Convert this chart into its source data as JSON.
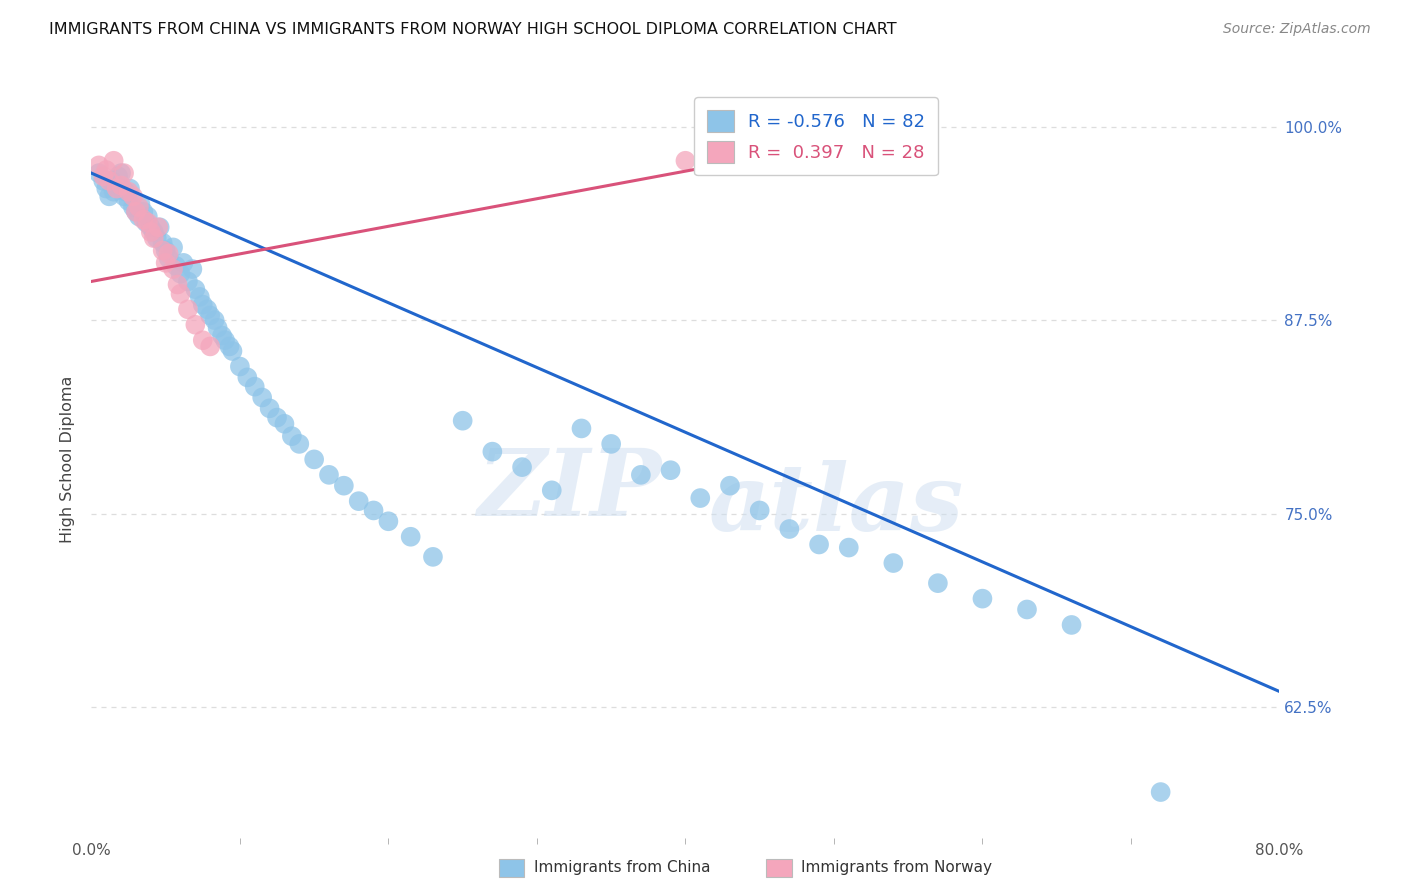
{
  "title": "IMMIGRANTS FROM CHINA VS IMMIGRANTS FROM NORWAY HIGH SCHOOL DIPLOMA CORRELATION CHART",
  "source": "Source: ZipAtlas.com",
  "ylabel": "High School Diploma",
  "ytick_labels": [
    "100.0%",
    "87.5%",
    "75.0%",
    "62.5%"
  ],
  "ytick_values": [
    1.0,
    0.875,
    0.75,
    0.625
  ],
  "xlim": [
    0.0,
    0.8
  ],
  "ylim": [
    0.54,
    1.03
  ],
  "legend_china": "R = -0.576   N = 82",
  "legend_norway": "R =  0.397   N = 28",
  "china_color": "#8ec4e8",
  "norway_color": "#f4a6bc",
  "china_line_color": "#2166cc",
  "norway_line_color": "#d9527a",
  "watermark_zip": "ZIP",
  "watermark_atlas": "atlas",
  "background_color": "#ffffff",
  "china_scatter_x": [
    0.005,
    0.008,
    0.01,
    0.012,
    0.014,
    0.015,
    0.017,
    0.018,
    0.02,
    0.02,
    0.022,
    0.023,
    0.025,
    0.026,
    0.028,
    0.03,
    0.032,
    0.033,
    0.035,
    0.037,
    0.038,
    0.04,
    0.042,
    0.044,
    0.046,
    0.048,
    0.05,
    0.052,
    0.055,
    0.057,
    0.06,
    0.062,
    0.065,
    0.068,
    0.07,
    0.073,
    0.075,
    0.078,
    0.08,
    0.083,
    0.085,
    0.088,
    0.09,
    0.093,
    0.095,
    0.1,
    0.105,
    0.11,
    0.115,
    0.12,
    0.125,
    0.13,
    0.135,
    0.14,
    0.15,
    0.16,
    0.17,
    0.18,
    0.19,
    0.2,
    0.215,
    0.23,
    0.25,
    0.27,
    0.29,
    0.31,
    0.33,
    0.35,
    0.37,
    0.39,
    0.41,
    0.43,
    0.45,
    0.47,
    0.49,
    0.51,
    0.54,
    0.57,
    0.6,
    0.63,
    0.66,
    0.72
  ],
  "china_scatter_y": [
    0.97,
    0.965,
    0.96,
    0.955,
    0.965,
    0.958,
    0.962,
    0.968,
    0.96,
    0.97,
    0.955,
    0.958,
    0.952,
    0.96,
    0.948,
    0.945,
    0.942,
    0.95,
    0.945,
    0.938,
    0.942,
    0.935,
    0.932,
    0.928,
    0.935,
    0.925,
    0.92,
    0.915,
    0.922,
    0.91,
    0.905,
    0.912,
    0.9,
    0.908,
    0.895,
    0.89,
    0.885,
    0.882,
    0.878,
    0.875,
    0.87,
    0.865,
    0.862,
    0.858,
    0.855,
    0.845,
    0.838,
    0.832,
    0.825,
    0.818,
    0.812,
    0.808,
    0.8,
    0.795,
    0.785,
    0.775,
    0.768,
    0.758,
    0.752,
    0.745,
    0.735,
    0.722,
    0.81,
    0.79,
    0.78,
    0.765,
    0.805,
    0.795,
    0.775,
    0.778,
    0.76,
    0.768,
    0.752,
    0.74,
    0.73,
    0.728,
    0.718,
    0.705,
    0.695,
    0.688,
    0.678,
    0.57
  ],
  "norway_scatter_x": [
    0.005,
    0.008,
    0.01,
    0.012,
    0.015,
    0.017,
    0.02,
    0.022,
    0.025,
    0.028,
    0.03,
    0.032,
    0.035,
    0.038,
    0.04,
    0.042,
    0.045,
    0.048,
    0.05,
    0.052,
    0.055,
    0.058,
    0.06,
    0.065,
    0.07,
    0.075,
    0.08,
    0.4
  ],
  "norway_scatter_y": [
    0.975,
    0.968,
    0.972,
    0.965,
    0.978,
    0.96,
    0.962,
    0.97,
    0.958,
    0.955,
    0.945,
    0.948,
    0.94,
    0.938,
    0.932,
    0.928,
    0.935,
    0.92,
    0.912,
    0.918,
    0.908,
    0.898,
    0.892,
    0.882,
    0.872,
    0.862,
    0.858,
    0.978
  ],
  "china_line_x": [
    0.0,
    0.8
  ],
  "china_line_y": [
    0.97,
    0.635
  ],
  "norway_line_x": [
    0.0,
    0.55
  ],
  "norway_line_y": [
    0.9,
    0.998
  ],
  "grid_color": "#dddddd",
  "grid_style": "dashed"
}
